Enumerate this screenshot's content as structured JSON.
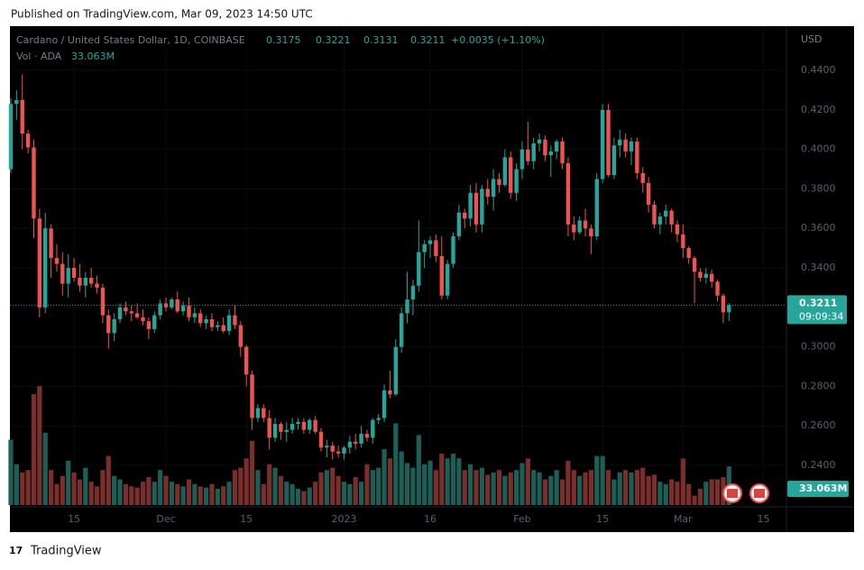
{
  "published": "Published on TradingView.com, Mar 09, 2023 14:50 UTC",
  "footer": "TradingView",
  "chart_data": {
    "type": "candlestick",
    "title": "Cardano / United States Dollar, 1D, COINBASE",
    "legend": {
      "o": "0.3175",
      "h": "0.3221",
      "l": "0.3131",
      "c": "0.3211",
      "change": "+0.0035 (+1.10%)",
      "volume_title": "Vol · ADA",
      "volume": "33.063M"
    },
    "currency": "USD",
    "last_price_label": "0.3211",
    "countdown": "09:09:34",
    "colors": {
      "up": "#26a69a",
      "down": "#ef5350",
      "volume_up": "#1d5e57",
      "volume_down": "#7b2f2d"
    },
    "xlim": [
      0,
      135
    ],
    "ylim": [
      0.219,
      0.4624
    ],
    "xticks": [
      {
        "value": 11,
        "label": "15"
      },
      {
        "value": 27,
        "label": "Dec"
      },
      {
        "value": 41,
        "label": "15"
      },
      {
        "value": 58,
        "label": "2023"
      },
      {
        "value": 73,
        "label": "16"
      },
      {
        "value": 89,
        "label": "Feb"
      },
      {
        "value": 103,
        "label": "15"
      },
      {
        "value": 117,
        "label": "Mar"
      },
      {
        "value": 131,
        "label": "15"
      }
    ],
    "yticks": [
      {
        "value": 0.24,
        "label": "0.2400"
      },
      {
        "value": 0.26,
        "label": "0.2600"
      },
      {
        "value": 0.28,
        "label": "0.2800"
      },
      {
        "value": 0.3,
        "label": "0.3000"
      },
      {
        "value": 0.32,
        "label": "0.3200"
      },
      {
        "value": 0.34,
        "label": "0.3400"
      },
      {
        "value": 0.36,
        "label": "0.3600"
      },
      {
        "value": 0.38,
        "label": "0.3800"
      },
      {
        "value": 0.4,
        "label": "0.4000"
      },
      {
        "value": 0.42,
        "label": "0.4200"
      },
      {
        "value": 0.44,
        "label": "0.4400"
      }
    ],
    "open": [
      0.39,
      0.423,
      0.425,
      0.408,
      0.401,
      0.365,
      0.32,
      0.36,
      0.345,
      0.342,
      0.332,
      0.34,
      0.335,
      0.331,
      0.335,
      0.332,
      0.33,
      0.316,
      0.307,
      0.314,
      0.32,
      0.318,
      0.317,
      0.315,
      0.313,
      0.309,
      0.316,
      0.322,
      0.32,
      0.324,
      0.318,
      0.321,
      0.315,
      0.317,
      0.312,
      0.314,
      0.31,
      0.311,
      0.308,
      0.316,
      0.311,
      0.3,
      0.286,
      0.264,
      0.269,
      0.264,
      0.254,
      0.261,
      0.257,
      0.258,
      0.261,
      0.262,
      0.258,
      0.263,
      0.257,
      0.249,
      0.25,
      0.247,
      0.246,
      0.249,
      0.252,
      0.251,
      0.256,
      0.254,
      0.263,
      0.264,
      0.278,
      0.276,
      0.3,
      0.317,
      0.324,
      0.331,
      0.348,
      0.352,
      0.354,
      0.346,
      0.326,
      0.342,
      0.356,
      0.368,
      0.365,
      0.378,
      0.362,
      0.38,
      0.376,
      0.385,
      0.382,
      0.396,
      0.378,
      0.39,
      0.4,
      0.394,
      0.403,
      0.405,
      0.397,
      0.399,
      0.404,
      0.393,
      0.362,
      0.358,
      0.364,
      0.36,
      0.356,
      0.385,
      0.42,
      0.387,
      0.402,
      0.405,
      0.399,
      0.404,
      0.388,
      0.383,
      0.372,
      0.362,
      0.366,
      0.369,
      0.362,
      0.357,
      0.35,
      0.345,
      0.338,
      0.335,
      0.337,
      0.333,
      0.326,
      0.3175
    ],
    "high": [
      0.426,
      0.43,
      0.438,
      0.41,
      0.405,
      0.37,
      0.368,
      0.362,
      0.352,
      0.348,
      0.347,
      0.345,
      0.342,
      0.338,
      0.34,
      0.336,
      0.332,
      0.319,
      0.317,
      0.322,
      0.323,
      0.321,
      0.322,
      0.319,
      0.315,
      0.318,
      0.324,
      0.325,
      0.325,
      0.328,
      0.323,
      0.325,
      0.32,
      0.319,
      0.316,
      0.317,
      0.313,
      0.315,
      0.319,
      0.321,
      0.313,
      0.301,
      0.288,
      0.271,
      0.271,
      0.268,
      0.264,
      0.262,
      0.262,
      0.264,
      0.264,
      0.264,
      0.264,
      0.265,
      0.259,
      0.253,
      0.252,
      0.25,
      0.25,
      0.255,
      0.256,
      0.26,
      0.258,
      0.264,
      0.266,
      0.281,
      0.288,
      0.304,
      0.32,
      0.338,
      0.334,
      0.364,
      0.354,
      0.356,
      0.357,
      0.356,
      0.344,
      0.358,
      0.372,
      0.37,
      0.382,
      0.383,
      0.382,
      0.385,
      0.39,
      0.388,
      0.4,
      0.399,
      0.393,
      0.404,
      0.414,
      0.406,
      0.408,
      0.407,
      0.402,
      0.405,
      0.406,
      0.396,
      0.366,
      0.366,
      0.37,
      0.362,
      0.388,
      0.423,
      0.423,
      0.406,
      0.41,
      0.408,
      0.406,
      0.406,
      0.391,
      0.386,
      0.374,
      0.368,
      0.372,
      0.37,
      0.364,
      0.362,
      0.351,
      0.346,
      0.34,
      0.34,
      0.339,
      0.334,
      0.327,
      0.3221
    ],
    "low": [
      0.388,
      0.415,
      0.4,
      0.398,
      0.355,
      0.315,
      0.317,
      0.335,
      0.338,
      0.326,
      0.325,
      0.333,
      0.328,
      0.325,
      0.33,
      0.327,
      0.312,
      0.299,
      0.303,
      0.312,
      0.316,
      0.313,
      0.314,
      0.311,
      0.304,
      0.307,
      0.314,
      0.318,
      0.319,
      0.317,
      0.316,
      0.313,
      0.312,
      0.31,
      0.309,
      0.308,
      0.308,
      0.307,
      0.306,
      0.309,
      0.295,
      0.28,
      0.258,
      0.262,
      0.262,
      0.248,
      0.252,
      0.253,
      0.252,
      0.256,
      0.258,
      0.256,
      0.256,
      0.256,
      0.247,
      0.244,
      0.243,
      0.244,
      0.243,
      0.246,
      0.248,
      0.249,
      0.252,
      0.251,
      0.261,
      0.262,
      0.274,
      0.275,
      0.297,
      0.312,
      0.316,
      0.328,
      0.34,
      0.345,
      0.343,
      0.324,
      0.324,
      0.34,
      0.354,
      0.36,
      0.361,
      0.358,
      0.358,
      0.372,
      0.369,
      0.378,
      0.381,
      0.375,
      0.374,
      0.385,
      0.392,
      0.39,
      0.399,
      0.394,
      0.386,
      0.395,
      0.39,
      0.356,
      0.354,
      0.357,
      0.356,
      0.347,
      0.354,
      0.383,
      0.386,
      0.385,
      0.396,
      0.396,
      0.392,
      0.385,
      0.378,
      0.368,
      0.36,
      0.357,
      0.362,
      0.358,
      0.353,
      0.345,
      0.342,
      0.322,
      0.333,
      0.332,
      0.33,
      0.323,
      0.312,
      0.3131
    ],
    "close": [
      0.423,
      0.425,
      0.408,
      0.401,
      0.365,
      0.32,
      0.36,
      0.345,
      0.342,
      0.332,
      0.34,
      0.335,
      0.331,
      0.335,
      0.332,
      0.33,
      0.316,
      0.307,
      0.314,
      0.32,
      0.318,
      0.317,
      0.315,
      0.313,
      0.309,
      0.316,
      0.322,
      0.32,
      0.324,
      0.318,
      0.321,
      0.315,
      0.317,
      0.312,
      0.314,
      0.31,
      0.311,
      0.308,
      0.316,
      0.311,
      0.3,
      0.286,
      0.264,
      0.269,
      0.264,
      0.254,
      0.261,
      0.257,
      0.258,
      0.261,
      0.262,
      0.258,
      0.263,
      0.257,
      0.249,
      0.25,
      0.247,
      0.246,
      0.249,
      0.252,
      0.251,
      0.256,
      0.254,
      0.263,
      0.264,
      0.278,
      0.276,
      0.3,
      0.317,
      0.324,
      0.331,
      0.348,
      0.352,
      0.354,
      0.346,
      0.326,
      0.342,
      0.356,
      0.368,
      0.365,
      0.378,
      0.362,
      0.38,
      0.376,
      0.385,
      0.382,
      0.396,
      0.378,
      0.39,
      0.4,
      0.394,
      0.403,
      0.405,
      0.397,
      0.399,
      0.404,
      0.393,
      0.362,
      0.358,
      0.364,
      0.36,
      0.356,
      0.385,
      0.42,
      0.387,
      0.402,
      0.405,
      0.399,
      0.404,
      0.388,
      0.383,
      0.372,
      0.362,
      0.366,
      0.369,
      0.362,
      0.357,
      0.35,
      0.345,
      0.338,
      0.335,
      0.337,
      0.333,
      0.326,
      0.3175,
      0.3211
    ],
    "volume": [
      56,
      35,
      28,
      30,
      95,
      102,
      62,
      30,
      18,
      25,
      38,
      28,
      22,
      32,
      20,
      16,
      30,
      42,
      25,
      22,
      18,
      16,
      15,
      20,
      24,
      20,
      30,
      25,
      20,
      18,
      16,
      22,
      18,
      16,
      15,
      18,
      14,
      16,
      20,
      30,
      32,
      40,
      55,
      30,
      18,
      35,
      32,
      25,
      20,
      18,
      14,
      12,
      15,
      20,
      28,
      30,
      32,
      25,
      20,
      18,
      24,
      20,
      35,
      30,
      32,
      48,
      40,
      70,
      46,
      36,
      32,
      60,
      35,
      38,
      30,
      44,
      40,
      44,
      40,
      30,
      35,
      30,
      32,
      26,
      28,
      30,
      25,
      28,
      30,
      36,
      40,
      30,
      28,
      22,
      25,
      30,
      22,
      38,
      30,
      25,
      28,
      30,
      42,
      42,
      30,
      22,
      28,
      30,
      28,
      30,
      32,
      25,
      26,
      20,
      18,
      22,
      20,
      40,
      18,
      8,
      14,
      20,
      22,
      22,
      24,
      33.063
    ]
  }
}
